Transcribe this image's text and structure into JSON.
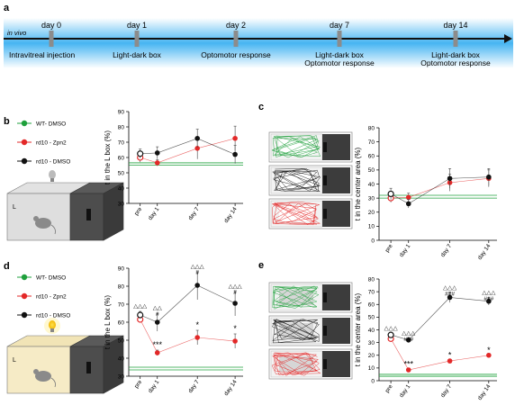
{
  "panel_labels": {
    "a": "a",
    "b": "b",
    "c": "c",
    "d": "d",
    "e": "e"
  },
  "timeline": {
    "context": "in vivo",
    "days": [
      "day 0",
      "day 1",
      "day 2",
      "day 7",
      "day 14"
    ],
    "activities": [
      [
        "Intravitreal injection"
      ],
      [
        "Light-dark box"
      ],
      [
        "Optomotor response"
      ],
      [
        "Light-dark box",
        "Optomotor response"
      ],
      [
        "Light-dark box",
        "Optomotor response"
      ]
    ]
  },
  "legend": [
    {
      "name": "WT- DMSO",
      "color": "#1fa03c"
    },
    {
      "name": "rd10 - Zpn2",
      "color": "#e32828"
    },
    {
      "name": "rd10 - DMSO",
      "color": "#111111"
    }
  ],
  "colors": {
    "wt": "#1fa03c",
    "zpn2": "#e32828",
    "dmso": "#111111",
    "timeline_band": "#47b5f2",
    "box_light_lit": "#f6ebc6",
    "box_light_off": "#dedede",
    "box_dark": "#4d4d4d",
    "arena_light": "#d6d6d6",
    "arena_dark": "#3c3c3c"
  },
  "icons": [
    "light-bulb-icon",
    "mouse-icon"
  ],
  "box_label": "L",
  "chart_data": [
    {
      "panel": "b",
      "type": "line",
      "categories": [
        "pre",
        "day 1",
        "day 7",
        "day 14"
      ],
      "ylabel": "t in the L box (%)",
      "ylim": [
        30,
        90
      ],
      "yticks": [
        30,
        40,
        50,
        60,
        70,
        80,
        90
      ],
      "wt_band": [
        55,
        56.5
      ],
      "series": [
        {
          "name": "rd10 - Zpn2",
          "color": "#e32828",
          "values": [
            60,
            56.5,
            66,
            72.5
          ],
          "err": [
            3,
            2,
            7,
            8
          ]
        },
        {
          "name": "rd10 - DMSO",
          "color": "#111111",
          "values": [
            62.5,
            63,
            72.5,
            62
          ],
          "err": [
            3,
            4,
            6,
            6
          ]
        }
      ],
      "annotations": []
    },
    {
      "panel": "c",
      "type": "line",
      "categories": [
        "pre",
        "day 1",
        "day 7",
        "day 14"
      ],
      "ylabel": "t in the center area (%)",
      "ylim": [
        0,
        80
      ],
      "yticks": [
        0,
        10,
        20,
        30,
        40,
        50,
        60,
        70,
        80
      ],
      "wt_band": [
        30,
        32
      ],
      "series": [
        {
          "name": "rd10 - Zpn2",
          "color": "#e32828",
          "values": [
            30,
            30.5,
            41,
            44
          ],
          "err": [
            3,
            3,
            6,
            6
          ]
        },
        {
          "name": "rd10 - DMSO",
          "color": "#111111",
          "values": [
            33,
            26,
            44,
            45
          ],
          "err": [
            4,
            3,
            7,
            6
          ]
        }
      ],
      "annotations": []
    },
    {
      "panel": "d",
      "type": "line",
      "categories": [
        "pre",
        "day 1",
        "day 7",
        "day 14"
      ],
      "ylabel": "t in the L box (%)",
      "ylim": [
        30,
        90
      ],
      "yticks": [
        30,
        40,
        50,
        60,
        70,
        80,
        90
      ],
      "wt_band": [
        33.5,
        35
      ],
      "series": [
        {
          "name": "rd10 - Zpn2",
          "color": "#e32828",
          "values": [
            61.5,
            43,
            51.5,
            49.5
          ],
          "err": [
            1.5,
            1.5,
            4,
            4
          ]
        },
        {
          "name": "rd10 - DMSO",
          "color": "#111111",
          "values": [
            64,
            60,
            80.5,
            70.5
          ],
          "err": [
            2,
            5,
            8,
            7
          ]
        }
      ],
      "annotations": [
        {
          "x": 0,
          "lines": [
            "△△△"
          ],
          "top": 68
        },
        {
          "x": 1,
          "lines": [
            "△△",
            "#"
          ],
          "top": 67
        },
        {
          "x": 2,
          "lines": [
            "△△△",
            "#"
          ],
          "top": 90
        },
        {
          "x": 3,
          "lines": [
            "△△△",
            "#"
          ],
          "top": 79
        },
        {
          "x": 1,
          "lines": [
            "***"
          ],
          "top": 46
        },
        {
          "x": 2,
          "lines": [
            "*"
          ],
          "top": 57
        },
        {
          "x": 3,
          "lines": [
            "*"
          ],
          "top": 55
        }
      ]
    },
    {
      "panel": "e",
      "type": "line",
      "categories": [
        "pre",
        "day 1",
        "day 7",
        "day 14"
      ],
      "ylabel": "t in the center area (%)",
      "ylim": [
        0,
        80
      ],
      "yticks": [
        0,
        10,
        20,
        30,
        40,
        50,
        60,
        70,
        80
      ],
      "wt_band": [
        3.5,
        5
      ],
      "series": [
        {
          "name": "rd10 - Zpn2",
          "color": "#e32828",
          "values": [
            33,
            8.5,
            15.5,
            20
          ],
          "err": [
            2,
            1.5,
            1.5,
            1.5
          ]
        },
        {
          "name": "rd10 - DMSO",
          "color": "#111111",
          "values": [
            36,
            32,
            65.5,
            62.5
          ],
          "err": [
            2,
            2,
            4,
            3
          ]
        }
      ],
      "annotations": [
        {
          "x": 0,
          "lines": [
            "△△△"
          ],
          "top": 40
        },
        {
          "x": 1,
          "lines": [
            "△△△",
            "###"
          ],
          "top": 36
        },
        {
          "x": 2,
          "lines": [
            "△△△",
            "###"
          ],
          "top": 72
        },
        {
          "x": 3,
          "lines": [
            "△△△",
            "###"
          ],
          "top": 68
        },
        {
          "x": 1,
          "lines": [
            "***"
          ],
          "top": 11
        },
        {
          "x": 2,
          "lines": [
            "*"
          ],
          "top": 18
        },
        {
          "x": 3,
          "lines": [
            "*"
          ],
          "top": 22
        }
      ]
    }
  ]
}
